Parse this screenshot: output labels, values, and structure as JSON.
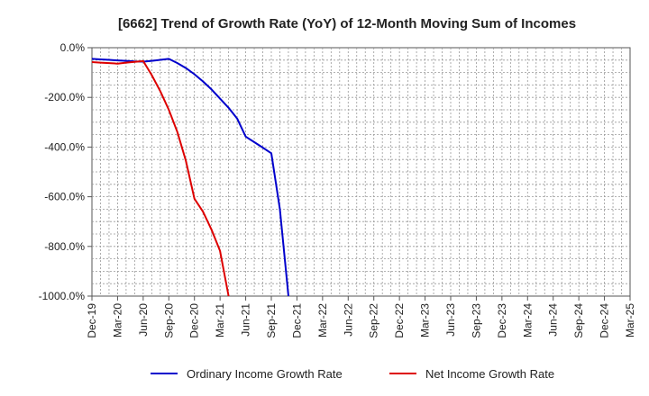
{
  "chart_data": {
    "type": "line",
    "title": "[6662]  Trend of Growth Rate (YoY) of 12-Month Moving Sum of Incomes",
    "xlabel": "",
    "ylabel": "",
    "ylim": [
      -1000,
      0
    ],
    "y_ticks": [
      0,
      -200,
      -400,
      -600,
      -800,
      -1000
    ],
    "y_tick_labels": [
      "0.0%",
      "-200.0%",
      "-400.0%",
      "-600.0%",
      "-800.0%",
      "-1000.0%"
    ],
    "x_ticks": [
      "Dec-19",
      "Mar-20",
      "Jun-20",
      "Sep-20",
      "Dec-20",
      "Mar-21",
      "Jun-21",
      "Sep-21",
      "Dec-21",
      "Mar-22",
      "Jun-22",
      "Sep-22",
      "Dec-22",
      "Mar-23",
      "Jun-23",
      "Sep-23",
      "Dec-23",
      "Mar-24",
      "Jun-24",
      "Sep-24",
      "Dec-24",
      "Mar-25"
    ],
    "grid": true,
    "legend_position": "bottom",
    "series": [
      {
        "name": "Ordinary Income Growth Rate",
        "color": "#0000cc",
        "points": [
          [
            "Dec-19",
            -45
          ],
          [
            "Jan-20",
            -47
          ],
          [
            "Feb-20",
            -49
          ],
          [
            "Mar-20",
            -51
          ],
          [
            "Apr-20",
            -53
          ],
          [
            "May-20",
            -55
          ],
          [
            "Jun-20",
            -56
          ],
          [
            "Jul-20",
            -53
          ],
          [
            "Aug-20",
            -49
          ],
          [
            "Sep-20",
            -45
          ],
          [
            "Oct-20",
            -62
          ],
          [
            "Nov-20",
            -82
          ],
          [
            "Dec-20",
            -107
          ],
          [
            "Jan-21",
            -136
          ],
          [
            "Feb-21",
            -168
          ],
          [
            "Mar-21",
            -205
          ],
          [
            "Apr-21",
            -242
          ],
          [
            "May-21",
            -285
          ],
          [
            "Jun-21",
            -358
          ],
          [
            "Jul-21",
            -380
          ],
          [
            "Aug-21",
            -402
          ],
          [
            "Sep-21",
            -425
          ],
          [
            "Oct-21",
            -650
          ],
          [
            "Nov-21",
            -1000
          ]
        ]
      },
      {
        "name": "Net Income Growth Rate",
        "color": "#dd0000",
        "points": [
          [
            "Dec-19",
            -58
          ],
          [
            "Jan-20",
            -60
          ],
          [
            "Feb-20",
            -62
          ],
          [
            "Mar-20",
            -64
          ],
          [
            "Apr-20",
            -60
          ],
          [
            "May-20",
            -57
          ],
          [
            "Jun-20",
            -54
          ],
          [
            "Jul-20",
            -110
          ],
          [
            "Aug-20",
            -175
          ],
          [
            "Sep-20",
            -250
          ],
          [
            "Oct-20",
            -340
          ],
          [
            "Nov-20",
            -455
          ],
          [
            "Dec-20",
            -608
          ],
          [
            "Jan-21",
            -660
          ],
          [
            "Feb-21",
            -733
          ],
          [
            "Mar-21",
            -818
          ],
          [
            "Apr-21",
            -1000
          ]
        ]
      }
    ]
  }
}
